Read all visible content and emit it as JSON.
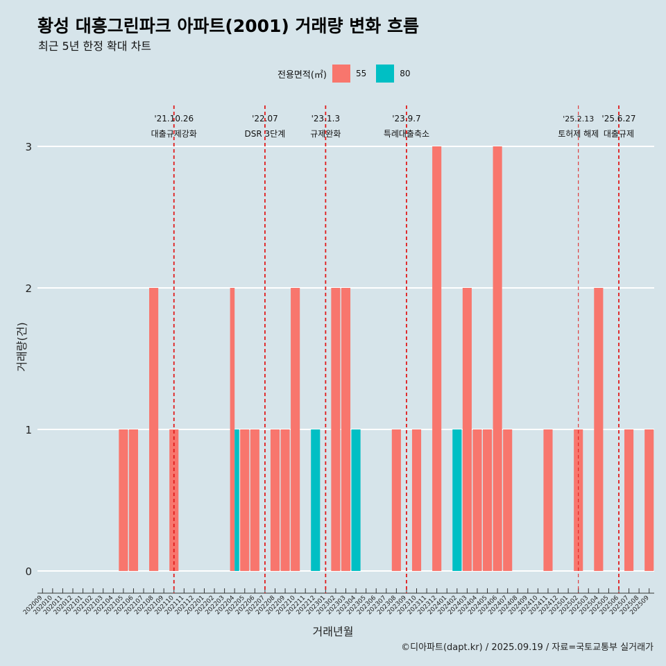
{
  "title": "황성 대흥그린파크 아파트(2001) 거래량 변화 흐름",
  "subtitle": "최근 5년 한정 확대 차트",
  "legend": {
    "title": "전용면적(㎡)",
    "items": [
      {
        "label": "55",
        "color": "#f8766d"
      },
      {
        "label": "80",
        "color": "#00bfc4"
      }
    ]
  },
  "caption": "©디아파트(dapt.kr) / 2025.09.19 / 자료=국토교통부 실거래가",
  "chart_data": {
    "type": "bar",
    "xlabel": "거래년월",
    "ylabel": "거래량(건)",
    "ylim": [
      0,
      3
    ],
    "yticks": [
      0,
      1,
      2,
      3
    ],
    "grid": true,
    "legend_position": "top",
    "categories": [
      "202009",
      "202010",
      "202011",
      "202012",
      "202101",
      "202102",
      "202103",
      "202104",
      "202105",
      "202106",
      "202107",
      "202108",
      "202109",
      "202110",
      "202111",
      "202112",
      "202201",
      "202202",
      "202203",
      "202204",
      "202205",
      "202206",
      "202207",
      "202208",
      "202209",
      "202210",
      "202211",
      "202212",
      "202301",
      "202302",
      "202303",
      "202304",
      "202305",
      "202306",
      "202307",
      "202308",
      "202309",
      "202310",
      "202311",
      "202312",
      "202401",
      "202402",
      "202403",
      "202404",
      "202405",
      "202406",
      "202407",
      "202408",
      "202409",
      "202410",
      "202411",
      "202412",
      "202501",
      "202502",
      "202503",
      "202504",
      "202505",
      "202506",
      "202507",
      "202508",
      "202509"
    ],
    "series": [
      {
        "name": "55",
        "color": "#f8766d",
        "values": [
          0,
          0,
          0,
          0,
          0,
          0,
          0,
          0,
          1,
          1,
          0,
          2,
          0,
          1,
          0,
          0,
          0,
          0,
          0,
          2,
          1,
          1,
          0,
          1,
          1,
          2,
          0,
          0,
          0,
          2,
          2,
          0,
          0,
          0,
          0,
          1,
          0,
          1,
          0,
          3,
          0,
          0,
          2,
          1,
          1,
          3,
          1,
          0,
          0,
          0,
          1,
          0,
          0,
          1,
          0,
          2,
          0,
          0,
          1,
          0,
          1
        ]
      },
      {
        "name": "80",
        "color": "#00bfc4",
        "values": [
          0,
          0,
          0,
          0,
          0,
          0,
          0,
          0,
          0,
          0,
          0,
          0,
          0,
          0,
          0,
          0,
          0,
          0,
          0,
          1,
          0,
          0,
          0,
          0,
          0,
          0,
          0,
          1,
          0,
          0,
          0,
          1,
          0,
          0,
          0,
          0,
          0,
          0,
          0,
          0,
          0,
          1,
          0,
          0,
          0,
          0,
          0,
          0,
          0,
          0,
          0,
          0,
          0,
          0,
          0,
          0,
          0,
          0,
          0,
          0,
          0
        ]
      }
    ],
    "annotations": [
      {
        "date": "'21.10.26",
        "text": "대출규제강화",
        "x": "202110",
        "style": "solid"
      },
      {
        "date": "'22.07",
        "text": "DSR 3단계",
        "x": "202207",
        "style": "solid"
      },
      {
        "date": "'23.1.3",
        "text": "규제완화",
        "x": "202301",
        "style": "solid"
      },
      {
        "date": "'23.9.7",
        "text": "특례대출축소",
        "x": "202309",
        "style": "solid"
      },
      {
        "date": "'25.2.13",
        "text": "토허제 해제",
        "x": "202502",
        "style": "thin"
      },
      {
        "date": "'25.6.27",
        "text": "대출규제",
        "x": "202506",
        "style": "solid"
      }
    ]
  }
}
